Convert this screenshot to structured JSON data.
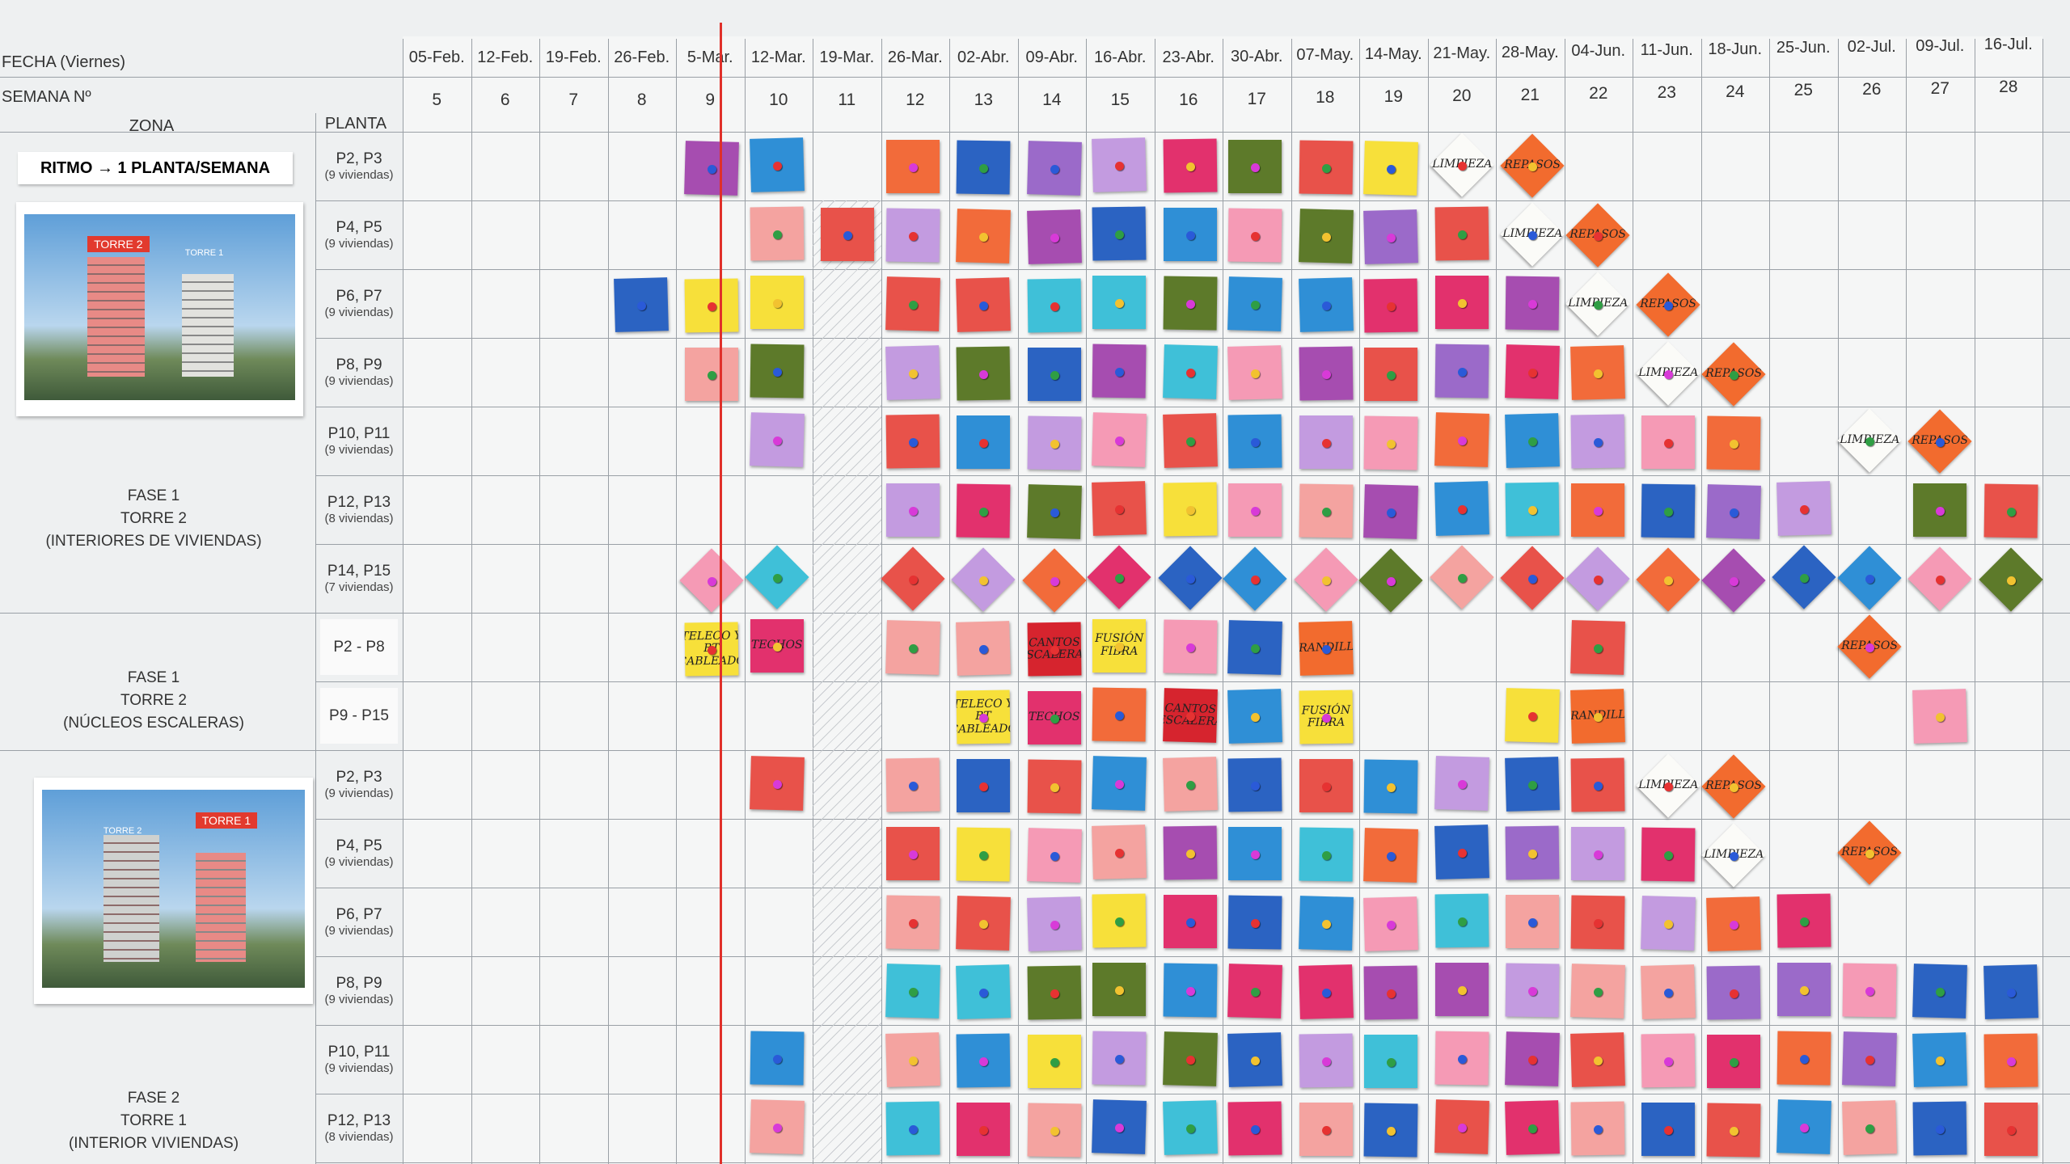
{
  "header": {
    "fecha_label": "FECHA (Viernes)",
    "semana_label": "SEMANA Nº",
    "zona_label": "ZONA",
    "planta_label": "PLANTA"
  },
  "weeks": [
    {
      "date": "05-Feb.",
      "number": 5
    },
    {
      "date": "12-Feb.",
      "number": 6
    },
    {
      "date": "19-Feb.",
      "number": 7
    },
    {
      "date": "26-Feb.",
      "number": 8
    },
    {
      "date": "5-Mar.",
      "number": 9
    },
    {
      "date": "12-Mar.",
      "number": 10
    },
    {
      "date": "19-Mar.",
      "number": 11
    },
    {
      "date": "26-Mar.",
      "number": 12
    },
    {
      "date": "02-Abr.",
      "number": 13
    },
    {
      "date": "09-Abr.",
      "number": 14
    },
    {
      "date": "16-Abr.",
      "number": 15
    },
    {
      "date": "23-Abr.",
      "number": 16
    },
    {
      "date": "30-Abr.",
      "number": 17
    },
    {
      "date": "07-May.",
      "number": 18
    },
    {
      "date": "14-May.",
      "number": 19
    },
    {
      "date": "21-May.",
      "number": 20
    },
    {
      "date": "28-May.",
      "number": 21
    },
    {
      "date": "04-Jun.",
      "number": 22
    },
    {
      "date": "11-Jun.",
      "number": 23
    },
    {
      "date": "18-Jun.",
      "number": 24
    },
    {
      "date": "25-Jun.",
      "number": 25
    },
    {
      "date": "02-Jul.",
      "number": 26
    },
    {
      "date": "09-Jul.",
      "number": 27
    },
    {
      "date": "16-Jul.",
      "number": 28
    }
  ],
  "ritmo": "RITMO → 1 PLANTA/SEMANA",
  "photos": [
    {
      "small": "TORRE 1",
      "red": "TORRE 2"
    },
    {
      "small": "TORRE 2",
      "red": "TORRE 1"
    }
  ],
  "zones": [
    {
      "lines": [
        "FASE 1",
        "TORRE 2",
        "(INTERIORES DE VIVIENDAS)"
      ]
    },
    {
      "lines": [
        "FASE 1",
        "TORRE 2",
        "(NÚCLEOS ESCALERAS)"
      ]
    },
    {
      "lines": [
        "FASE 2",
        "TORRE 1",
        "(INTERIOR VIVIENDAS)"
      ]
    }
  ],
  "rows": [
    {
      "planta": "P2, P3",
      "sub": "(9 viviendas)"
    },
    {
      "planta": "P4, P5",
      "sub": "(9 viviendas)"
    },
    {
      "planta": "P6, P7",
      "sub": "(9 viviendas)"
    },
    {
      "planta": "P8, P9",
      "sub": "(9 viviendas)"
    },
    {
      "planta": "P10, P11",
      "sub": "(9 viviendas)"
    },
    {
      "planta": "P12, P13",
      "sub": "(8 viviendas)"
    },
    {
      "planta": "P14, P15",
      "sub": "(7 viviendas)"
    },
    {
      "planta": "P2 - P8"
    },
    {
      "planta": "P9 - P15"
    },
    {
      "planta": "P2, P3",
      "sub": "(9 viviendas)"
    },
    {
      "planta": "P4, P5",
      "sub": "(9 viviendas)"
    },
    {
      "planta": "P6, P7",
      "sub": "(9 viviendas)"
    },
    {
      "planta": "P8, P9",
      "sub": "(9 viviendas)"
    },
    {
      "planta": "P10, P11",
      "sub": "(9 viviendas)"
    },
    {
      "planta": "P12, P13",
      "sub": "(8 viviendas)"
    }
  ],
  "notes": [
    {
      "text": "LIMPIEZA"
    },
    {
      "text": "REPASOS"
    },
    {
      "text": "LIMPIEZA"
    },
    {
      "text": "REPASOS"
    },
    {
      "text": "LIMPIEZA"
    },
    {
      "text": "REPASOS"
    },
    {
      "text": "LIMPIEZA"
    },
    {
      "text": "REPASOS"
    },
    {
      "text": "LIMPIEZA"
    },
    {
      "text": "REPASOS"
    },
    {
      "text": "TELECO Y BT CABLEADO"
    },
    {
      "text": "TECHOS"
    },
    {
      "text": "CANTOS ESCALERAS"
    },
    {
      "text": "FUSIÓN FIBRA"
    },
    {
      "text": "BARANDILLAS"
    },
    {
      "text": "REPASOS"
    },
    {
      "text": "TELECO Y BT CABLEADO"
    },
    {
      "text": "TECHOS"
    },
    {
      "text": "CANTOS ESCALERA"
    },
    {
      "text": "FUSIÓN FIBRA"
    },
    {
      "text": "BARANDILLAS"
    },
    {
      "text": "LIMPIEZA"
    },
    {
      "text": "REPASOS"
    },
    {
      "text": "LIMPIEZA"
    },
    {
      "text": "REPASOS"
    }
  ]
}
